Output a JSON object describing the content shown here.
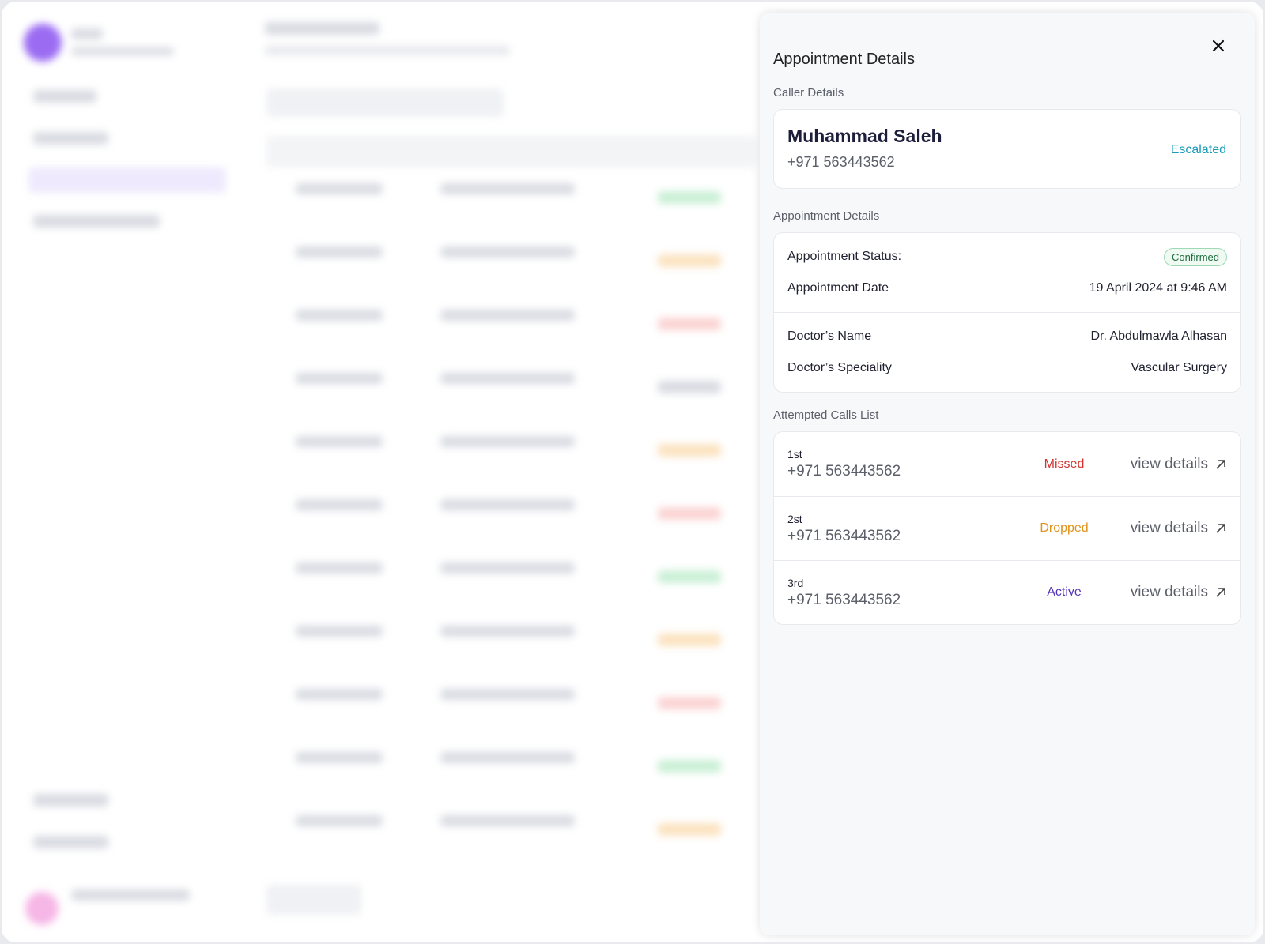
{
  "panel": {
    "title": "Appointment Details",
    "caller": {
      "heading": "Caller Details",
      "name": "Muhammad Saleh",
      "phone": "+971 563443562",
      "status": "Escalated"
    },
    "appointment": {
      "heading": "Appointment Details",
      "rows": [
        {
          "label": "Appointment Status:",
          "value": "Confirmed"
        },
        {
          "label": "Appointment Date",
          "value": "19 April 2024 at 9:46 AM"
        },
        {
          "label": "Doctor’s Name",
          "value": "Dr. Abdulmawla Alhasan"
        },
        {
          "label": "Doctor’s Speciality",
          "value": "Vascular Surgery"
        }
      ]
    },
    "calls": {
      "heading": "Attempted Calls List",
      "items": [
        {
          "order": "1st",
          "phone": "+971 563443562",
          "status": "Missed",
          "action": "view details"
        },
        {
          "order": "2st",
          "phone": "+971 563443562",
          "status": "Dropped",
          "action": "view details"
        },
        {
          "order": "3rd",
          "phone": "+971 563443562",
          "status": "Active",
          "action": "view details"
        }
      ]
    }
  }
}
